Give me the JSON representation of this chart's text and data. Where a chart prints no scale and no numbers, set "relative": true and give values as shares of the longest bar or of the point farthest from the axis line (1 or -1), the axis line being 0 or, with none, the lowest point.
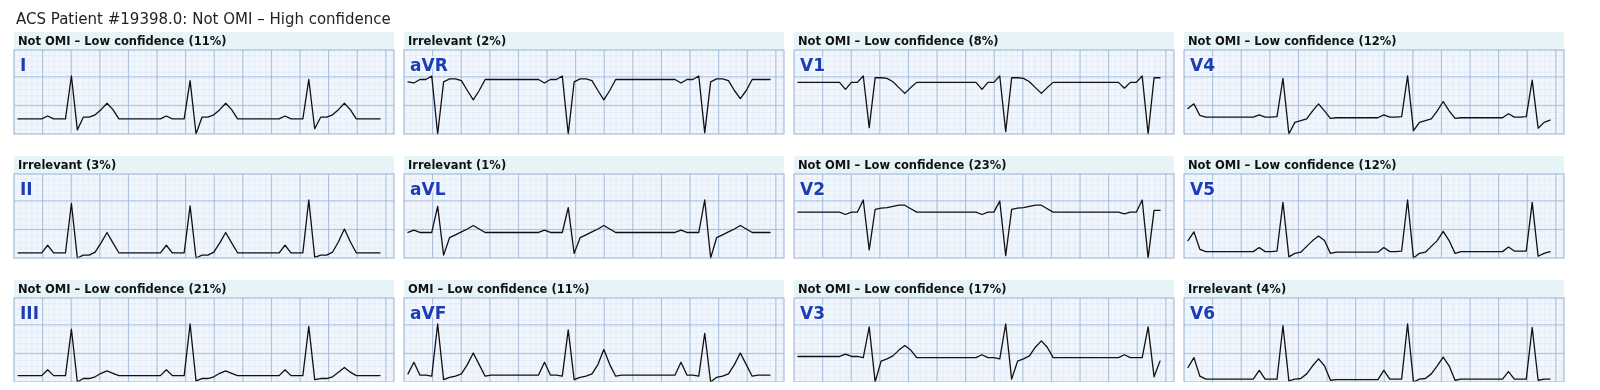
{
  "chart_data": [
    {
      "type": "other",
      "title": "ACS Patient #19398.0: Not OMI – High confidence"
    },
    {
      "type": "line",
      "title": "Not OMI – Low confidence (11%)",
      "relative": true,
      "grid": true,
      "categories": [
        null,
        null,
        null,
        null,
        null,
        null,
        null,
        null,
        null,
        null,
        null,
        null,
        null,
        null,
        null,
        null,
        null,
        null,
        null,
        null,
        null,
        null,
        null,
        null,
        null,
        null,
        null,
        null,
        null,
        null,
        null,
        null,
        null,
        null,
        null,
        null,
        null,
        null,
        null,
        null,
        null,
        null,
        null,
        null,
        null,
        null,
        null,
        null,
        null,
        null,
        null,
        null,
        null,
        null,
        null,
        null,
        null,
        null,
        null,
        null,
        null,
        null
      ],
      "series": [
        {
          "name": "I",
          "color": "#111111",
          "values": [
            0.26,
            0.26,
            0.26,
            0.26,
            0.26,
            0.31,
            0.26,
            0.26,
            0.26,
            1,
            0.07,
            0.29,
            0.29,
            0.33,
            0.42,
            0.53,
            0.42,
            0.26,
            0.26,
            0.26,
            0.26,
            0.26,
            0.26,
            0.26,
            0.26,
            0.31,
            0.26,
            0.26,
            0.26,
            0.92,
            0,
            0.29,
            0.29,
            0.33,
            0.42,
            0.53,
            0.42,
            0.26,
            0.26,
            0.26,
            0.26,
            0.26,
            0.26,
            0.26,
            0.26,
            0.31,
            0.26,
            0.26,
            0.26,
            0.94,
            0.09,
            0.29,
            0.29,
            0.33,
            0.42,
            0.53,
            0.42,
            0.26,
            0.26,
            0.26,
            0.26,
            0.26
          ]
        }
      ]
    },
    {
      "type": "line",
      "title": "Irrelevant (2%)",
      "relative": true,
      "grid": true,
      "categories": [
        null,
        null,
        null,
        null,
        null,
        null,
        null,
        null,
        null,
        null,
        null,
        null,
        null,
        null,
        null,
        null,
        null,
        null,
        null,
        null,
        null,
        null,
        null,
        null,
        null,
        null,
        null,
        null,
        null,
        null,
        null,
        null,
        null,
        null,
        null,
        null,
        null,
        null,
        null,
        null,
        null,
        null,
        null,
        null,
        null,
        null,
        null,
        null,
        null,
        null,
        null,
        null,
        null,
        null,
        null,
        null,
        null,
        null,
        null,
        null,
        null,
        null
      ],
      "series": [
        {
          "name": "aVR",
          "color": "#111111",
          "values": [
            0.9,
            0.88,
            0.94,
            0.94,
            1,
            0,
            0.9,
            0.95,
            0.95,
            0.92,
            0.75,
            0.59,
            0.75,
            0.94,
            0.94,
            0.94,
            0.94,
            0.94,
            0.94,
            0.94,
            0.94,
            0.94,
            0.94,
            0.88,
            0.94,
            0.94,
            1,
            0,
            0.9,
            0.95,
            0.95,
            0.92,
            0.75,
            0.59,
            0.75,
            0.94,
            0.94,
            0.94,
            0.94,
            0.94,
            0.94,
            0.94,
            0.94,
            0.94,
            0.94,
            0.94,
            0.88,
            0.94,
            0.94,
            1,
            0.02,
            0.9,
            0.95,
            0.95,
            0.92,
            0.75,
            0.61,
            0.75,
            0.94,
            0.94,
            0.94,
            0.94
          ]
        }
      ]
    },
    {
      "type": "line",
      "title": "Not OMI – Low confidence (8%)",
      "relative": true,
      "grid": true,
      "categories": [
        null,
        null,
        null,
        null,
        null,
        null,
        null,
        null,
        null,
        null,
        null,
        null,
        null,
        null,
        null,
        null,
        null,
        null,
        null,
        null,
        null,
        null,
        null,
        null,
        null,
        null,
        null,
        null,
        null,
        null,
        null,
        null,
        null,
        null,
        null,
        null,
        null,
        null,
        null,
        null,
        null,
        null,
        null,
        null,
        null,
        null,
        null,
        null,
        null,
        null,
        null,
        null,
        null,
        null,
        null,
        null,
        null,
        null,
        null,
        null,
        null,
        null
      ],
      "series": [
        {
          "name": "V1",
          "color": "#111111",
          "values": [
            0.89,
            0.89,
            0.89,
            0.89,
            0.89,
            0.89,
            0.89,
            0.89,
            0.77,
            0.89,
            0.89,
            1,
            0.11,
            0.97,
            0.97,
            0.96,
            0.9,
            0.8,
            0.7,
            0.8,
            0.89,
            0.89,
            0.89,
            0.89,
            0.89,
            0.89,
            0.89,
            0.89,
            0.89,
            0.89,
            0.89,
            0.77,
            0.89,
            0.89,
            1,
            0.04,
            0.97,
            0.97,
            0.96,
            0.9,
            0.8,
            0.7,
            0.8,
            0.89,
            0.89,
            0.89,
            0.89,
            0.89,
            0.89,
            0.89,
            0.89,
            0.89,
            0.89,
            0.89,
            0.89,
            0.79,
            0.89,
            0.89,
            1,
            0,
            0.97,
            0.97
          ]
        }
      ]
    },
    {
      "type": "line",
      "title": "Not OMI – Low confidence (12%)",
      "relative": true,
      "grid": true,
      "categories": [
        null,
        null,
        null,
        null,
        null,
        null,
        null,
        null,
        null,
        null,
        null,
        null,
        null,
        null,
        null,
        null,
        null,
        null,
        null,
        null,
        null,
        null,
        null,
        null,
        null,
        null,
        null,
        null,
        null,
        null,
        null,
        null,
        null,
        null,
        null,
        null,
        null,
        null,
        null,
        null,
        null,
        null,
        null,
        null,
        null,
        null,
        null,
        null,
        null,
        null,
        null,
        null,
        null,
        null,
        null,
        null,
        null,
        null,
        null,
        null,
        null,
        null
      ],
      "series": [
        {
          "name": "V4",
          "color": "#111111",
          "values": [
            0.44,
            0.52,
            0.32,
            0.29,
            0.29,
            0.29,
            0.29,
            0.29,
            0.29,
            0.29,
            0.29,
            0.29,
            0.33,
            0.29,
            0.29,
            0.3,
            0.96,
            0,
            0.2,
            0.23,
            0.26,
            0.4,
            0.52,
            0.4,
            0.27,
            0.28,
            0.28,
            0.28,
            0.28,
            0.28,
            0.28,
            0.28,
            0.28,
            0.33,
            0.29,
            0.29,
            0.3,
            1,
            0.06,
            0.2,
            0.23,
            0.26,
            0.4,
            0.56,
            0.4,
            0.27,
            0.28,
            0.28,
            0.28,
            0.28,
            0.28,
            0.28,
            0.28,
            0.28,
            0.35,
            0.29,
            0.29,
            0.3,
            0.93,
            0.1,
            0.2,
            0.24
          ]
        }
      ]
    },
    {
      "type": "line",
      "title": "Irrelevant (3%)",
      "relative": true,
      "grid": true,
      "categories": [
        null,
        null,
        null,
        null,
        null,
        null,
        null,
        null,
        null,
        null,
        null,
        null,
        null,
        null,
        null,
        null,
        null,
        null,
        null,
        null,
        null,
        null,
        null,
        null,
        null,
        null,
        null,
        null,
        null,
        null,
        null,
        null,
        null,
        null,
        null,
        null,
        null,
        null,
        null,
        null,
        null,
        null,
        null,
        null,
        null,
        null,
        null,
        null,
        null,
        null,
        null,
        null,
        null,
        null,
        null,
        null,
        null,
        null,
        null,
        null,
        null,
        null
      ],
      "series": [
        {
          "name": "II",
          "color": "#111111",
          "values": [
            0.09,
            0.09,
            0.09,
            0.09,
            0.09,
            0.22,
            0.09,
            0.09,
            0.09,
            0.94,
            0,
            0.05,
            0.05,
            0.1,
            0.26,
            0.44,
            0.26,
            0.09,
            0.09,
            0.09,
            0.09,
            0.09,
            0.09,
            0.09,
            0.09,
            0.22,
            0.09,
            0.09,
            0.09,
            0.9,
            0,
            0.05,
            0.05,
            0.1,
            0.26,
            0.44,
            0.26,
            0.09,
            0.09,
            0.09,
            0.09,
            0.09,
            0.09,
            0.09,
            0.09,
            0.22,
            0.09,
            0.09,
            0.09,
            1,
            0.01,
            0.05,
            0.05,
            0.1,
            0.28,
            0.5,
            0.28,
            0.09,
            0.09,
            0.09,
            0.09,
            0.09
          ]
        }
      ]
    },
    {
      "type": "line",
      "title": "Irrelevant (1%)",
      "relative": true,
      "grid": true,
      "categories": [
        null,
        null,
        null,
        null,
        null,
        null,
        null,
        null,
        null,
        null,
        null,
        null,
        null,
        null,
        null,
        null,
        null,
        null,
        null,
        null,
        null,
        null,
        null,
        null,
        null,
        null,
        null,
        null,
        null,
        null,
        null,
        null,
        null,
        null,
        null,
        null,
        null,
        null,
        null,
        null,
        null,
        null,
        null,
        null,
        null,
        null,
        null,
        null,
        null,
        null,
        null,
        null,
        null,
        null,
        null,
        null,
        null,
        null,
        null,
        null,
        null,
        null
      ],
      "series": [
        {
          "name": "aVL",
          "color": "#111111",
          "values": [
            0.44,
            0.48,
            0.44,
            0.44,
            0.44,
            0.89,
            0.05,
            0.35,
            0.4,
            0.45,
            0.5,
            0.56,
            0.5,
            0.44,
            0.44,
            0.44,
            0.44,
            0.44,
            0.44,
            0.44,
            0.44,
            0.44,
            0.44,
            0.48,
            0.44,
            0.44,
            0.44,
            0.87,
            0.08,
            0.35,
            0.4,
            0.45,
            0.5,
            0.56,
            0.5,
            0.44,
            0.44,
            0.44,
            0.44,
            0.44,
            0.44,
            0.44,
            0.44,
            0.44,
            0.44,
            0.44,
            0.48,
            0.44,
            0.44,
            0.44,
            1,
            0,
            0.35,
            0.4,
            0.45,
            0.5,
            0.56,
            0.5,
            0.44,
            0.44,
            0.44,
            0.44
          ]
        }
      ]
    },
    {
      "type": "line",
      "title": "Not OMI – Low confidence (23%)",
      "relative": true,
      "grid": true,
      "categories": [
        null,
        null,
        null,
        null,
        null,
        null,
        null,
        null,
        null,
        null,
        null,
        null,
        null,
        null,
        null,
        null,
        null,
        null,
        null,
        null,
        null,
        null,
        null,
        null,
        null,
        null,
        null,
        null,
        null,
        null,
        null,
        null,
        null,
        null,
        null,
        null,
        null,
        null,
        null,
        null,
        null,
        null,
        null,
        null,
        null,
        null,
        null,
        null,
        null,
        null,
        null,
        null,
        null,
        null,
        null,
        null,
        null,
        null,
        null,
        null,
        null,
        null
      ],
      "series": [
        {
          "name": "V2",
          "color": "#111111",
          "values": [
            0.79,
            0.79,
            0.79,
            0.79,
            0.79,
            0.79,
            0.79,
            0.79,
            0.75,
            0.79,
            0.79,
            1,
            0.14,
            0.84,
            0.86,
            0.87,
            0.89,
            0.91,
            0.91,
            0.85,
            0.79,
            0.79,
            0.79,
            0.79,
            0.79,
            0.79,
            0.79,
            0.79,
            0.79,
            0.79,
            0.79,
            0.75,
            0.79,
            0.79,
            0.98,
            0.04,
            0.84,
            0.86,
            0.87,
            0.89,
            0.91,
            0.91,
            0.85,
            0.79,
            0.79,
            0.79,
            0.79,
            0.79,
            0.79,
            0.79,
            0.79,
            0.79,
            0.79,
            0.79,
            0.79,
            0.76,
            0.79,
            0.79,
            1,
            0,
            0.82,
            0.82
          ]
        }
      ]
    },
    {
      "type": "line",
      "title": "Not OMI – Low confidence (12%)",
      "relative": true,
      "grid": true,
      "categories": [
        null,
        null,
        null,
        null,
        null,
        null,
        null,
        null,
        null,
        null,
        null,
        null,
        null,
        null,
        null,
        null,
        null,
        null,
        null,
        null,
        null,
        null,
        null,
        null,
        null,
        null,
        null,
        null,
        null,
        null,
        null,
        null,
        null,
        null,
        null,
        null,
        null,
        null,
        null,
        null,
        null,
        null,
        null,
        null,
        null,
        null,
        null,
        null,
        null,
        null,
        null,
        null,
        null,
        null,
        null,
        null,
        null,
        null,
        null,
        null,
        null,
        null
      ],
      "series": [
        {
          "name": "V5",
          "color": "#111111",
          "values": [
            0.3,
            0.45,
            0.15,
            0.11,
            0.11,
            0.11,
            0.11,
            0.11,
            0.11,
            0.11,
            0.11,
            0.11,
            0.18,
            0.11,
            0.11,
            0.12,
            0.96,
            0.02,
            0.08,
            0.1,
            0.2,
            0.3,
            0.38,
            0.3,
            0.08,
            0.1,
            0.1,
            0.1,
            0.1,
            0.1,
            0.1,
            0.1,
            0.1,
            0.18,
            0.11,
            0.11,
            0.12,
            1,
            0,
            0.08,
            0.1,
            0.2,
            0.3,
            0.46,
            0.3,
            0.08,
            0.11,
            0.11,
            0.11,
            0.11,
            0.11,
            0.11,
            0.11,
            0.11,
            0.19,
            0.12,
            0.12,
            0.12,
            0.96,
            0.03,
            0.08,
            0.11
          ]
        }
      ]
    },
    {
      "type": "line",
      "title": "Not OMI – Low confidence (21%)",
      "relative": true,
      "grid": true,
      "categories": [
        null,
        null,
        null,
        null,
        null,
        null,
        null,
        null,
        null,
        null,
        null,
        null,
        null,
        null,
        null,
        null,
        null,
        null,
        null,
        null,
        null,
        null,
        null,
        null,
        null,
        null,
        null,
        null,
        null,
        null,
        null,
        null,
        null,
        null,
        null,
        null,
        null,
        null,
        null,
        null,
        null,
        null,
        null,
        null,
        null,
        null,
        null,
        null,
        null,
        null,
        null,
        null,
        null,
        null,
        null,
        null,
        null,
        null,
        null,
        null,
        null,
        null
      ],
      "series": [
        {
          "name": "III",
          "color": "#111111",
          "values": [
            0.11,
            0.11,
            0.11,
            0.11,
            0.11,
            0.21,
            0.11,
            0.11,
            0.11,
            0.91,
            0,
            0.06,
            0.06,
            0.09,
            0.15,
            0.19,
            0.15,
            0.11,
            0.11,
            0.11,
            0.11,
            0.11,
            0.11,
            0.11,
            0.11,
            0.21,
            0.11,
            0.11,
            0.11,
            1,
            0.02,
            0.06,
            0.06,
            0.09,
            0.15,
            0.19,
            0.15,
            0.11,
            0.11,
            0.11,
            0.11,
            0.11,
            0.11,
            0.11,
            0.11,
            0.21,
            0.11,
            0.11,
            0.11,
            0.96,
            0.04,
            0.06,
            0.06,
            0.09,
            0.17,
            0.25,
            0.17,
            0.11,
            0.11,
            0.11,
            0.11,
            0.11
          ]
        }
      ]
    },
    {
      "type": "line",
      "title": "OMI – Low confidence (11%)",
      "relative": true,
      "grid": true,
      "categories": [
        null,
        null,
        null,
        null,
        null,
        null,
        null,
        null,
        null,
        null,
        null,
        null,
        null,
        null,
        null,
        null,
        null,
        null,
        null,
        null,
        null,
        null,
        null,
        null,
        null,
        null,
        null,
        null,
        null,
        null,
        null,
        null,
        null,
        null,
        null,
        null,
        null,
        null,
        null,
        null,
        null,
        null,
        null,
        null,
        null,
        null,
        null,
        null,
        null,
        null,
        null,
        null,
        null,
        null,
        null,
        null,
        null,
        null,
        null,
        null,
        null,
        null
      ],
      "series": [
        {
          "name": "aVF",
          "color": "#111111",
          "values": [
            0.14,
            0.34,
            0.12,
            0.12,
            0.1,
            1,
            0.04,
            0.08,
            0.1,
            0.14,
            0.3,
            0.5,
            0.3,
            0.1,
            0.12,
            0.12,
            0.12,
            0.12,
            0.12,
            0.12,
            0.12,
            0.12,
            0.12,
            0.34,
            0.12,
            0.12,
            0.1,
            0.9,
            0.04,
            0.08,
            0.1,
            0.14,
            0.3,
            0.56,
            0.3,
            0.1,
            0.12,
            0.12,
            0.12,
            0.12,
            0.12,
            0.12,
            0.12,
            0.12,
            0.12,
            0.12,
            0.34,
            0.12,
            0.12,
            0.1,
            0.84,
            0,
            0.08,
            0.1,
            0.14,
            0.3,
            0.5,
            0.3,
            0.1,
            0.12,
            0.12,
            0.12
          ]
        }
      ]
    },
    {
      "type": "line",
      "title": "Not OMI – Low confidence (17%)",
      "relative": true,
      "grid": true,
      "categories": [
        null,
        null,
        null,
        null,
        null,
        null,
        null,
        null,
        null,
        null,
        null,
        null,
        null,
        null,
        null,
        null,
        null,
        null,
        null,
        null,
        null,
        null,
        null,
        null,
        null,
        null,
        null,
        null,
        null,
        null,
        null,
        null,
        null,
        null,
        null,
        null,
        null,
        null,
        null,
        null,
        null,
        null,
        null,
        null,
        null,
        null,
        null,
        null,
        null,
        null,
        null,
        null,
        null,
        null,
        null,
        null,
        null,
        null,
        null,
        null,
        null,
        null
      ],
      "series": [
        {
          "name": "V3",
          "color": "#111111",
          "values": [
            0.44,
            0.44,
            0.44,
            0.44,
            0.44,
            0.44,
            0.44,
            0.44,
            0.48,
            0.44,
            0.44,
            0.42,
            0.95,
            0,
            0.36,
            0.4,
            0.45,
            0.55,
            0.63,
            0.55,
            0.42,
            0.42,
            0.42,
            0.42,
            0.42,
            0.42,
            0.42,
            0.42,
            0.42,
            0.42,
            0.42,
            0.47,
            0.42,
            0.42,
            0.4,
            1,
            0.05,
            0.36,
            0.4,
            0.45,
            0.6,
            0.71,
            0.6,
            0.42,
            0.42,
            0.42,
            0.42,
            0.42,
            0.42,
            0.42,
            0.42,
            0.42,
            0.42,
            0.42,
            0.42,
            0.47,
            0.42,
            0.42,
            0.42,
            0.95,
            0.09,
            0.36
          ]
        }
      ]
    },
    {
      "type": "line",
      "title": "Irrelevant (4%)",
      "relative": true,
      "grid": true,
      "categories": [
        null,
        null,
        null,
        null,
        null,
        null,
        null,
        null,
        null,
        null,
        null,
        null,
        null,
        null,
        null,
        null,
        null,
        null,
        null,
        null,
        null,
        null,
        null,
        null,
        null,
        null,
        null,
        null,
        null,
        null,
        null,
        null,
        null,
        null,
        null,
        null,
        null,
        null,
        null,
        null,
        null,
        null,
        null,
        null,
        null,
        null,
        null,
        null,
        null,
        null,
        null,
        null,
        null,
        null,
        null,
        null,
        null,
        null,
        null,
        null,
        null,
        null
      ],
      "series": [
        {
          "name": "V6",
          "color": "#111111",
          "values": [
            0.25,
            0.42,
            0.1,
            0.05,
            0.05,
            0.05,
            0.05,
            0.05,
            0.05,
            0.05,
            0.05,
            0.05,
            0.2,
            0.05,
            0.05,
            0.05,
            0.97,
            0.02,
            0.05,
            0.06,
            0.14,
            0.28,
            0.4,
            0.28,
            0.03,
            0.04,
            0.04,
            0.04,
            0.04,
            0.04,
            0.04,
            0.04,
            0.04,
            0.2,
            0.05,
            0.05,
            0.05,
            1,
            0,
            0.05,
            0.06,
            0.14,
            0.28,
            0.43,
            0.28,
            0.03,
            0.05,
            0.05,
            0.05,
            0.05,
            0.05,
            0.05,
            0.05,
            0.05,
            0.18,
            0.05,
            0.05,
            0.05,
            0.94,
            0.03,
            0.05,
            0.05
          ]
        }
      ]
    }
  ]
}
